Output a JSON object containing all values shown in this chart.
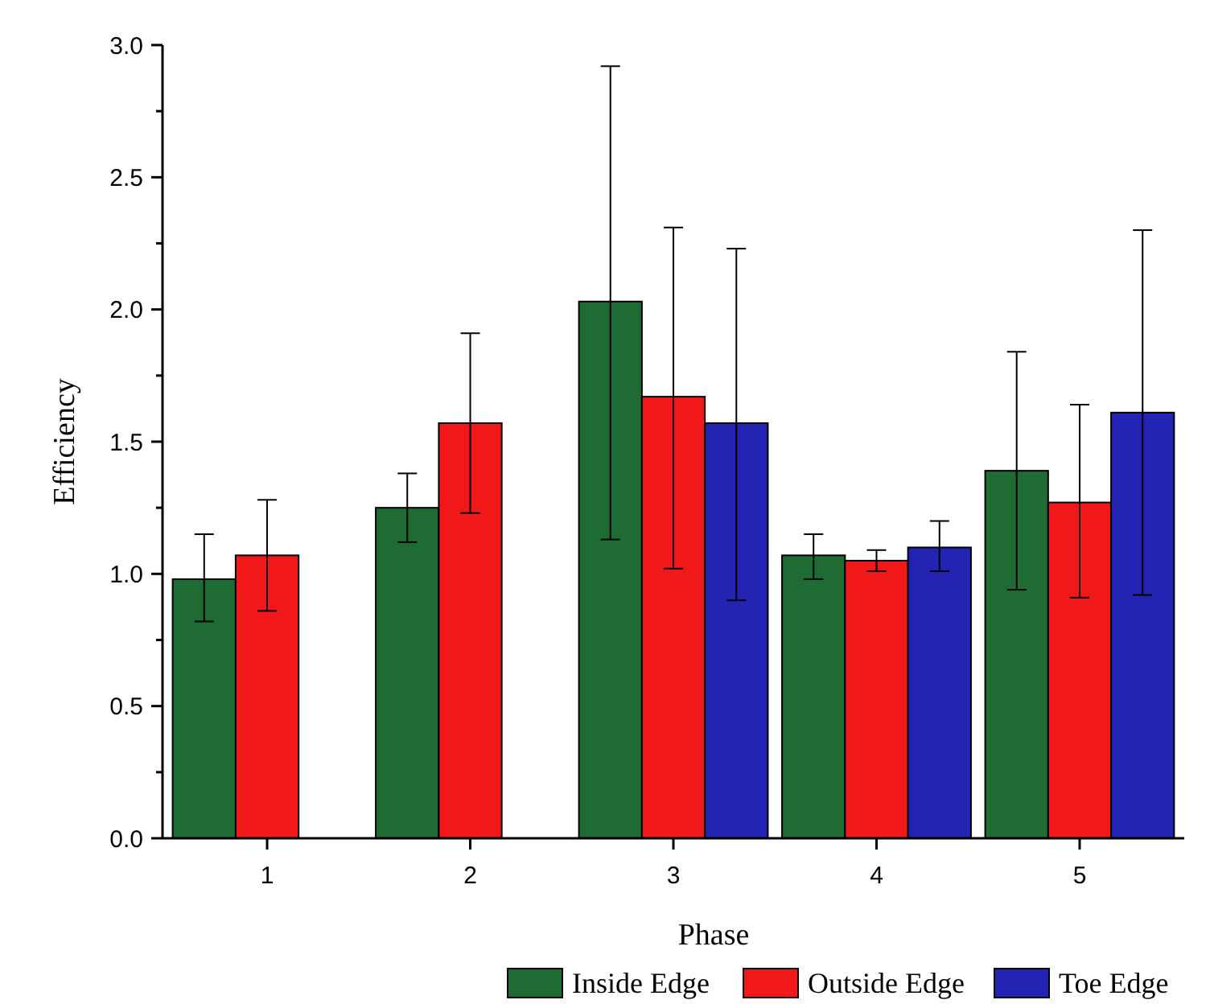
{
  "chart_data": {
    "type": "bar",
    "xlabel": "Phase",
    "ylabel": "Efficiency",
    "categories": [
      "1",
      "2",
      "3",
      "4",
      "5"
    ],
    "series": [
      {
        "name": "Inside Edge",
        "color": "#1e6b34",
        "values": [
          0.98,
          1.25,
          2.03,
          1.07,
          1.39
        ],
        "errors": [
          [
            0.82,
            1.15
          ],
          [
            1.12,
            1.38
          ],
          [
            1.13,
            2.92
          ],
          [
            0.98,
            1.15
          ],
          [
            0.94,
            1.84
          ]
        ]
      },
      {
        "name": "Outside Edge",
        "color": "#f01818",
        "values": [
          1.07,
          1.57,
          1.67,
          1.05,
          1.27
        ],
        "errors": [
          [
            0.86,
            1.28
          ],
          [
            1.23,
            1.91
          ],
          [
            1.02,
            2.31
          ],
          [
            1.01,
            1.09
          ],
          [
            0.91,
            1.64
          ]
        ]
      },
      {
        "name": "Toe Edge",
        "color": "#2424b4",
        "values": [
          null,
          null,
          1.57,
          1.1,
          1.61
        ],
        "errors": [
          null,
          null,
          [
            0.9,
            2.23
          ],
          [
            1.01,
            1.2
          ],
          [
            0.92,
            2.3
          ]
        ]
      }
    ],
    "ylim": [
      0,
      3
    ],
    "yticks": [
      {
        "value": 0,
        "label": "0.0"
      },
      {
        "value": 0.25,
        "label": null
      },
      {
        "value": 0.5,
        "label": "0.5"
      },
      {
        "value": 0.75,
        "label": null
      },
      {
        "value": 1,
        "label": "1.0"
      },
      {
        "value": 1.25,
        "label": null
      },
      {
        "value": 1.5,
        "label": "1.5"
      },
      {
        "value": 1.75,
        "label": null
      },
      {
        "value": 2,
        "label": "2.0"
      },
      {
        "value": 2.25,
        "label": null
      },
      {
        "value": 2.5,
        "label": "2.5"
      },
      {
        "value": 2.75,
        "label": null
      },
      {
        "value": 3,
        "label": "3.0"
      }
    ],
    "grid": false,
    "legend": "bottom"
  }
}
